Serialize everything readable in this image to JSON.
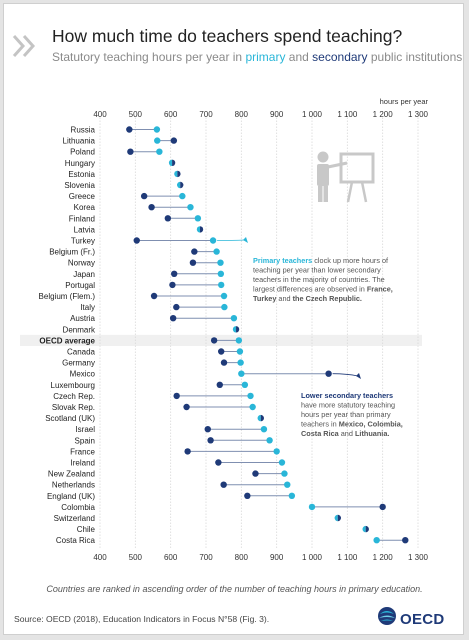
{
  "header": {
    "title": "How much time do teachers spend teaching?",
    "subtitle_start": "Statutory teaching hours per year in ",
    "subtitle_primary": "primary",
    "subtitle_and": " and ",
    "subtitle_secondary": "secondary",
    "subtitle_end": " public institutions"
  },
  "colors": {
    "primary": "#29b6d8",
    "secondary": "#1f3a78",
    "connector": "#7f8fb0",
    "highlight_row": "#f0f0f0",
    "annotation_primary": "#29b6d8",
    "annotation_secondary": "#1f3a78"
  },
  "chart_data": {
    "type": "dumbbell",
    "unit_label": "hours per year",
    "xlim": [
      400,
      1300
    ],
    "ticks": [
      400,
      500,
      600,
      700,
      800,
      900,
      1000,
      1100,
      1200,
      1300
    ],
    "tick_labels": [
      "400",
      "500",
      "600",
      "700",
      "800",
      "900",
      "1 000",
      "1 100",
      "1 200",
      "1 300"
    ],
    "grid": true,
    "series": [
      {
        "name": "primary",
        "color": "#29b6d8"
      },
      {
        "name": "secondary",
        "color": "#1f3a78"
      }
    ],
    "highlight": "OECD average",
    "rows": [
      {
        "country": "Russia",
        "primary": 561,
        "secondary": 483
      },
      {
        "country": "Lithuania",
        "primary": 562,
        "secondary": 609
      },
      {
        "country": "Poland",
        "primary": 568,
        "secondary": 486
      },
      {
        "country": "Hungary",
        "primary": 604,
        "secondary": 604
      },
      {
        "country": "Estonia",
        "primary": 619,
        "secondary": 619
      },
      {
        "country": "Slovenia",
        "primary": 627,
        "secondary": 627
      },
      {
        "country": "Greece",
        "primary": 633,
        "secondary": 525
      },
      {
        "country": "Korea",
        "primary": 656,
        "secondary": 546
      },
      {
        "country": "Finland",
        "primary": 677,
        "secondary": 592
      },
      {
        "country": "Latvia",
        "primary": 683,
        "secondary": 683
      },
      {
        "country": "Turkey",
        "primary": 720,
        "secondary": 504
      },
      {
        "country": "Belgium (Fr.)",
        "primary": 730,
        "secondary": 667
      },
      {
        "country": "Norway",
        "primary": 741,
        "secondary": 663
      },
      {
        "country": "Japan",
        "primary": 742,
        "secondary": 610
      },
      {
        "country": "Portugal",
        "primary": 743,
        "secondary": 605
      },
      {
        "country": "Belgium (Flem.)",
        "primary": 751,
        "secondary": 553
      },
      {
        "country": "Italy",
        "primary": 752,
        "secondary": 616
      },
      {
        "country": "Austria",
        "primary": 779,
        "secondary": 607
      },
      {
        "country": "Denmark",
        "primary": 785,
        "secondary": 785
      },
      {
        "country": "OECD average",
        "primary": 793,
        "secondary": 723
      },
      {
        "country": "Canada",
        "primary": 796,
        "secondary": 743
      },
      {
        "country": "Germany",
        "primary": 798,
        "secondary": 751
      },
      {
        "country": "Mexico",
        "primary": 800,
        "secondary": 1047
      },
      {
        "country": "Luxembourg",
        "primary": 810,
        "secondary": 739
      },
      {
        "country": "Czech Rep.",
        "primary": 826,
        "secondary": 617
      },
      {
        "country": "Slovak Rep.",
        "primary": 832,
        "secondary": 645
      },
      {
        "country": "Scotland (UK)",
        "primary": 855,
        "secondary": 855
      },
      {
        "country": "Israel",
        "primary": 864,
        "secondary": 705
      },
      {
        "country": "Spain",
        "primary": 880,
        "secondary": 713
      },
      {
        "country": "France",
        "primary": 900,
        "secondary": 648
      },
      {
        "country": "Ireland",
        "primary": 915,
        "secondary": 735
      },
      {
        "country": "New Zealand",
        "primary": 922,
        "secondary": 840
      },
      {
        "country": "Netherlands",
        "primary": 930,
        "secondary": 750
      },
      {
        "country": "England (UK)",
        "primary": 943,
        "secondary": 817
      },
      {
        "country": "Colombia",
        "primary": 1000,
        "secondary": 1200
      },
      {
        "country": "Switzerland",
        "primary": 1073,
        "secondary": 1073
      },
      {
        "country": "Chile",
        "primary": 1152,
        "secondary": 1152
      },
      {
        "country": "Costa Rica",
        "primary": 1183,
        "secondary": 1264
      }
    ],
    "annotations": [
      {
        "target": "Turkey",
        "color": "#29b6d8",
        "lines": [
          [
            {
              "t": "Primary teachers",
              "b": true,
              "c": "#29b6d8"
            },
            {
              "t": " clock up more hours of"
            }
          ],
          [
            {
              "t": "teaching per year than lower secondary"
            }
          ],
          [
            {
              "t": "teachers in the majority of countries. The"
            }
          ],
          [
            {
              "t": "largest differences are observed in "
            },
            {
              "t": "France,",
              "b": true
            }
          ],
          [
            {
              "t": "Turkey",
              "b": true
            },
            {
              "t": " and "
            },
            {
              "t": "the Czech Republic.",
              "b": true
            }
          ]
        ]
      },
      {
        "target": "Mexico",
        "color": "#1f3a78",
        "lines": [
          [
            {
              "t": "Lower secondary teachers",
              "b": true,
              "c": "#1f3a78"
            }
          ],
          [
            {
              "t": "have more statutory teaching"
            }
          ],
          [
            {
              "t": "hours per year than primary"
            }
          ],
          [
            {
              "t": "teachers in "
            },
            {
              "t": "Mexico, Colombia,",
              "b": true
            }
          ],
          [
            {
              "t": "Costa Rica",
              "b": true
            },
            {
              "t": " and "
            },
            {
              "t": "Lithuania.",
              "b": true
            }
          ]
        ]
      }
    ]
  },
  "footer": {
    "note": "Countries are ranked in ascending order of the number of teaching hours in primary education.",
    "source": "Source: OECD (2018), Education Indicators in Focus N°58 (Fig. 3).",
    "logo_text": "OECD"
  }
}
